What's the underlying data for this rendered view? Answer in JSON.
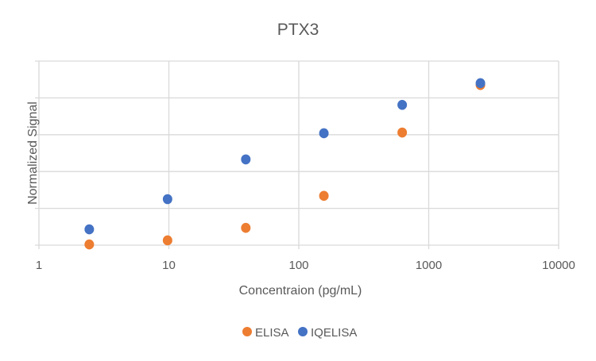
{
  "chart_data": {
    "type": "scatter",
    "title": "PTX3",
    "xlabel": "Concentraion (pg/mL)",
    "ylabel": "Normalized Signal",
    "x_scale": "log",
    "xlim": [
      1,
      10000
    ],
    "x_ticks": [
      "1",
      "10",
      "100",
      "1000",
      "10000"
    ],
    "ylim": [
      0,
      5
    ],
    "y_tick_count": 6,
    "grid": true,
    "legend": "bottom",
    "series": [
      {
        "name": "ELISA",
        "color": "#ED7D31",
        "x": [
          2.44,
          9.77,
          39.1,
          156,
          625,
          2500
        ],
        "y": [
          0.02,
          0.13,
          0.47,
          1.34,
          3.06,
          4.35
        ]
      },
      {
        "name": "IQELISA",
        "color": "#4472C4",
        "x": [
          2.44,
          9.77,
          39.1,
          156,
          625,
          2500
        ],
        "y": [
          0.43,
          1.25,
          2.33,
          3.04,
          3.81,
          4.4
        ]
      }
    ]
  }
}
